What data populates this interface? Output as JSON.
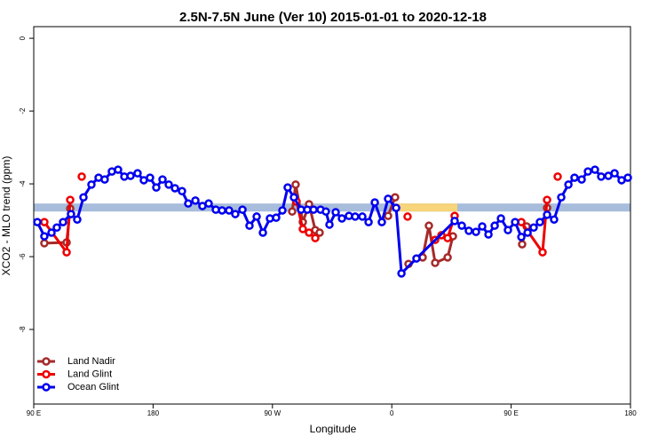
{
  "chart_data": {
    "type": "line",
    "title": "2.5N-7.5N June (Ver 10)   2015-01-01 to 2020-12-18",
    "x_label": "Longitude",
    "y_label": "XCO2 - MLO trend (ppm)",
    "xlim": [
      90,
      540
    ],
    "xticks": [
      {
        "value": 90,
        "label": "90 E"
      },
      180,
      {
        "value": 270,
        "label": "90 W"
      },
      {
        "value": 360,
        "label": "0"
      },
      {
        "value": 450,
        "label": "90 E"
      },
      {
        "value": 540,
        "label": "180"
      }
    ],
    "ylim": [
      -10.05,
      0.32
    ],
    "yticks": [
      0,
      -2,
      -4,
      -6,
      -8
    ],
    "legend": "bottom-left",
    "bands": [
      {
        "xlim": [
          90,
          540
        ],
        "ylim": [
          -4.76,
          -4.54
        ],
        "color": "#a7bddb"
      },
      {
        "xlim": [
          362.5,
          409.4
        ],
        "ylim": [
          -4.76,
          -4.54
        ],
        "color": "#f8d47a"
      }
    ],
    "series": [
      {
        "name": "Land Nadir",
        "color": "#a52a2a",
        "x": [
          98.0,
          114.8,
          117.5,
          null,
          284.9,
          287.5,
          292.9,
          297.6,
          302.3,
          305.6,
          null,
          357.2,
          362.5,
          null,
          372.6,
          null,
          383.3,
          388.0,
          392.7,
          402.1,
          406.1,
          null,
          458.3,
          461.7,
          null,
          477.1
        ],
        "values": [
          -5.63,
          -5.61,
          -4.68,
          null,
          -4.76,
          -4.02,
          -5.05,
          -4.56,
          -5.27,
          -5.34,
          null,
          -4.88,
          -4.37,
          null,
          -6.2,
          null,
          -6.02,
          -5.15,
          -6.17,
          -6.02,
          -5.44,
          null,
          -5.66,
          -5.17,
          null,
          -4.66
        ]
      },
      {
        "name": "Land Glint",
        "color": "#ee0000",
        "x": [
          98.0,
          114.8,
          117.5,
          null,
          126.2,
          null,
          288.2,
          292.9,
          297.6,
          302.3,
          null,
          371.9,
          null,
          392.7,
          397.4,
          402.1,
          407.4,
          null,
          457.7,
          473.7,
          477.1,
          null,
          485.1
        ],
        "values": [
          -5.05,
          -5.88,
          -4.44,
          null,
          -3.8,
          null,
          -4.49,
          -5.24,
          -5.34,
          -5.49,
          null,
          -4.9,
          null,
          -5.54,
          -5.41,
          -5.49,
          -4.88,
          null,
          -5.05,
          -5.88,
          -4.44,
          null,
          -3.8
        ]
      },
      {
        "name": "Ocean Glint",
        "color": "#0000ee",
        "x": [
          92.7,
          98.0,
          103.4,
          107.4,
          112.1,
          118.1,
          122.8,
          127.5,
          133.5,
          138.9,
          143.5,
          148.9,
          153.6,
          158.3,
          163.0,
          168.3,
          173.0,
          177.7,
          182.4,
          187.1,
          191.8,
          196.5,
          201.8,
          206.5,
          211.9,
          217.2,
          221.9,
          227.3,
          232.0,
          237.3,
          242.0,
          247.4,
          252.7,
          258.1,
          262.8,
          268.1,
          272.8,
          277.5,
          281.5,
          286.2,
          291.6,
          296.3,
          301.0,
          306.3,
          310.3,
          313.0,
          317.7,
          322.4,
          327.7,
          332.4,
          337.8,
          342.5,
          347.2,
          352.5,
          357.2,
          363.3,
          367.3,
          378.6,
          407.4,
          412.8,
          418.1,
          423.5,
          428.2,
          432.9,
          437.6,
          442.3,
          447.6,
          453.0,
          457.7,
          462.4,
          467.0,
          471.7,
          477.1,
          482.4,
          487.8,
          493.2,
          497.8,
          503.2,
          507.9,
          513.2,
          517.9,
          523.3,
          528.0,
          533.3,
          538.0
        ],
        "values": [
          -5.05,
          -5.44,
          -5.34,
          -5.2,
          -5.05,
          -4.83,
          -4.98,
          -4.37,
          -4.02,
          -3.83,
          -3.88,
          -3.66,
          -3.61,
          -3.8,
          -3.78,
          -3.71,
          -3.9,
          -3.83,
          -4.1,
          -3.88,
          -4.02,
          -4.12,
          -4.2,
          -4.54,
          -4.46,
          -4.61,
          -4.54,
          -4.71,
          -4.73,
          -4.73,
          -4.83,
          -4.71,
          -5.15,
          -4.9,
          -5.34,
          -4.95,
          -4.93,
          -4.73,
          -4.1,
          -4.37,
          -4.71,
          -4.71,
          -4.71,
          -4.71,
          -4.76,
          -5.12,
          -4.78,
          -4.95,
          -4.88,
          -4.9,
          -4.9,
          -5.05,
          -4.51,
          -5.05,
          -4.41,
          -4.66,
          -6.46,
          -6.05,
          -5.02,
          -5.15,
          -5.29,
          -5.32,
          -5.17,
          -5.39,
          -5.15,
          -4.95,
          -5.27,
          -5.05,
          -5.46,
          -5.34,
          -5.2,
          -5.05,
          -4.85,
          -4.98,
          -4.37,
          -4.02,
          -3.83,
          -3.88,
          -3.66,
          -3.61,
          -3.8,
          -3.78,
          -3.71,
          -3.9,
          -3.83
        ]
      }
    ]
  }
}
